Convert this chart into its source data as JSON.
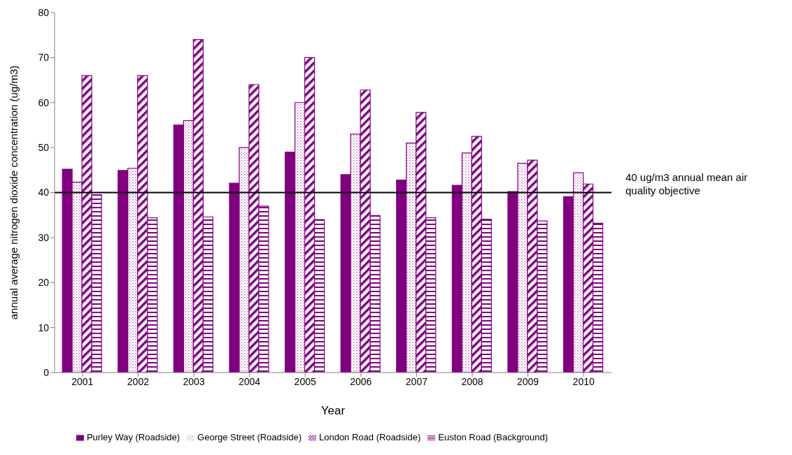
{
  "chart_data": {
    "type": "bar",
    "xlabel": "Year",
    "ylabel": "annual average nitrogen dioxide concentration (ug/m3)",
    "categories": [
      "2001",
      "2002",
      "2003",
      "2004",
      "2005",
      "2006",
      "2007",
      "2008",
      "2009",
      "2010"
    ],
    "series": [
      {
        "name": "Purley Way (Roadside)",
        "color": "#800080",
        "values": [
          45.2,
          44.9,
          55,
          42.1,
          49,
          44,
          42.8,
          41.6,
          40.2,
          39.1
        ]
      },
      {
        "name": "George Street (Roadside)",
        "color": "#800080",
        "values": [
          42.3,
          45.4,
          56,
          50,
          60,
          53,
          51,
          48.8,
          46.5,
          44.4
        ]
      },
      {
        "name": "London Road (Roadside)",
        "color": "#800080",
        "values": [
          66,
          66,
          74,
          64,
          70,
          62.8,
          57.8,
          52.5,
          47.2,
          41.9
        ]
      },
      {
        "name": "Euston Road (Background)",
        "color": "#800080",
        "values": [
          39.5,
          34.4,
          34.6,
          37,
          34,
          34.9,
          34.4,
          34.1,
          33.7,
          33.2
        ]
      }
    ],
    "ylim": [
      0,
      80
    ],
    "yticks": [
      0,
      10,
      20,
      30,
      40,
      50,
      60,
      70,
      80
    ],
    "grid": false,
    "legend": "bottom",
    "ref_lines": [
      {
        "axis": "y",
        "value": 40,
        "label": "40 ug/m3 annual mean  air quality objective",
        "color": "#000000"
      }
    ]
  }
}
